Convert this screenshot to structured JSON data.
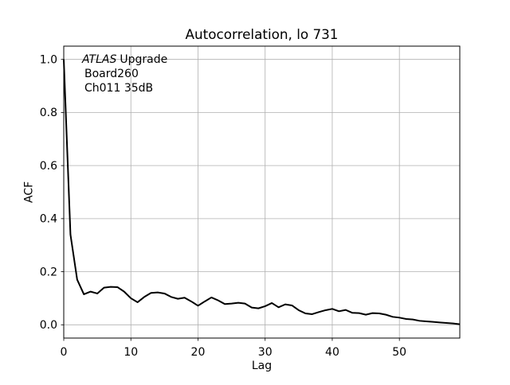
{
  "figure": {
    "background": "#ffffff"
  },
  "chart_data": {
    "type": "line",
    "title": "Autocorrelation, lo 731",
    "xlabel": "Lag",
    "ylabel": "ACF",
    "xlim": [
      0,
      59
    ],
    "ylim": [
      -0.05,
      1.05
    ],
    "xticks": [
      0,
      10,
      20,
      30,
      40,
      50
    ],
    "xtick_labels": [
      "0",
      "10",
      "20",
      "30",
      "40",
      "50"
    ],
    "yticks": [
      0.0,
      0.2,
      0.4,
      0.6,
      0.8,
      1.0
    ],
    "ytick_labels": [
      "0.0",
      "0.2",
      "0.4",
      "0.6",
      "0.8",
      "1.0"
    ],
    "grid": true,
    "grid_color": "#b0b0b0",
    "line_color": "#000000",
    "line_width": 2,
    "spine_color": "#000000",
    "annotation": {
      "line1_italic": "ATLAS",
      "line1_text": "Upgrade",
      "line2": "Board260",
      "line3": "Ch011 35dB"
    },
    "x": [
      0,
      1,
      2,
      3,
      4,
      5,
      6,
      7,
      8,
      9,
      10,
      11,
      12,
      13,
      14,
      15,
      16,
      17,
      18,
      19,
      20,
      21,
      22,
      23,
      24,
      25,
      26,
      27,
      28,
      29,
      30,
      31,
      32,
      33,
      34,
      35,
      36,
      37,
      38,
      39,
      40,
      41,
      42,
      43,
      44,
      45,
      46,
      47,
      48,
      49,
      50,
      51,
      52,
      53,
      54,
      55,
      56,
      57,
      58,
      59
    ],
    "values": [
      1.0,
      0.34,
      0.17,
      0.115,
      0.125,
      0.118,
      0.14,
      0.143,
      0.142,
      0.125,
      0.1,
      0.085,
      0.105,
      0.12,
      0.122,
      0.118,
      0.105,
      0.098,
      0.102,
      0.088,
      0.072,
      0.088,
      0.103,
      0.092,
      0.078,
      0.08,
      0.083,
      0.08,
      0.065,
      0.062,
      0.07,
      0.082,
      0.066,
      0.077,
      0.073,
      0.055,
      0.043,
      0.04,
      0.048,
      0.055,
      0.06,
      0.051,
      0.056,
      0.045,
      0.044,
      0.038,
      0.044,
      0.043,
      0.038,
      0.03,
      0.027,
      0.022,
      0.02,
      0.015,
      0.013,
      0.011,
      0.009,
      0.007,
      0.005,
      0.002
    ]
  }
}
